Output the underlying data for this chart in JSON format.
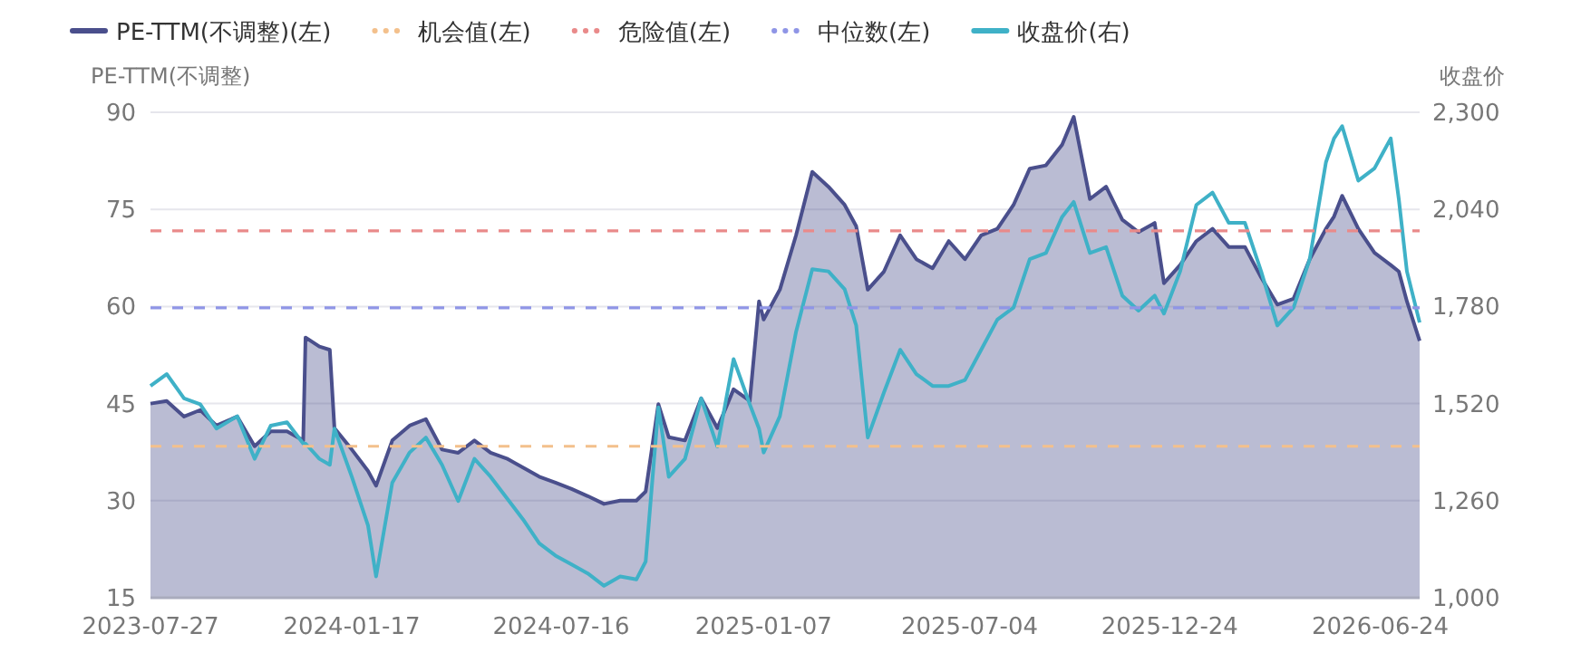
{
  "chart_data": {
    "type": "line",
    "ylabel": "PE-TTM(不调整)",
    "y2label": "收盘价",
    "x": [
      "2023-07-27",
      "2023-08-10",
      "2023-08-25",
      "2023-09-08",
      "2023-09-22",
      "2023-10-10",
      "2023-10-25",
      "2023-11-08",
      "2023-11-22",
      "2023-12-06",
      "2023-12-08",
      "2023-12-20",
      "2023-12-29",
      "2024-01-02",
      "2024-01-17",
      "2024-01-31",
      "2024-02-07",
      "2024-02-21",
      "2024-03-07",
      "2024-03-21",
      "2024-04-04",
      "2024-04-18",
      "2024-05-02",
      "2024-05-16",
      "2024-05-30",
      "2024-06-13",
      "2024-06-27",
      "2024-07-11",
      "2024-07-25",
      "2024-08-08",
      "2024-08-22",
      "2024-09-05",
      "2024-09-19",
      "2024-09-27",
      "2024-10-08",
      "2024-10-17",
      "2024-10-31",
      "2024-11-14",
      "2024-11-28",
      "2024-12-12",
      "2024-12-26",
      "2025-01-03",
      "2025-01-07",
      "2025-01-21",
      "2025-02-04",
      "2025-02-18",
      "2025-03-04",
      "2025-03-18",
      "2025-03-28",
      "2025-04-07",
      "2025-04-21",
      "2025-05-05",
      "2025-05-19",
      "2025-06-02",
      "2025-06-16",
      "2025-06-30",
      "2025-07-14",
      "2025-07-28",
      "2025-08-11",
      "2025-08-25",
      "2025-09-08",
      "2025-09-22",
      "2025-10-02",
      "2025-10-16",
      "2025-10-30",
      "2025-11-13",
      "2025-11-27",
      "2025-12-11",
      "2025-12-19",
      "2026-01-02",
      "2026-01-16",
      "2026-01-30",
      "2026-02-13",
      "2026-02-27",
      "2026-03-13",
      "2026-03-27",
      "2026-04-10",
      "2026-04-24",
      "2026-05-08",
      "2026-05-15",
      "2026-05-22",
      "2026-06-05",
      "2026-06-19",
      "2026-07-03",
      "2026-07-10",
      "2026-07-17",
      "2026-07-28"
    ],
    "series": [
      {
        "name": "PE-TTM(不调整)(左)",
        "type": "area",
        "color": "#4a4f8c",
        "values": [
          45,
          45.4,
          43,
          44,
          41.6,
          43,
          38.4,
          40.7,
          40.7,
          39.3,
          55.2,
          53.8,
          53.3,
          41.2,
          37.9,
          34.6,
          32.3,
          39.3,
          41.6,
          42.6,
          37.9,
          37.4,
          39.3,
          37.4,
          36.5,
          35.1,
          33.7,
          32.8,
          31.8,
          30.7,
          29.5,
          30,
          30,
          31.4,
          44.9,
          39.8,
          39.3,
          45.8,
          41.2,
          47.2,
          45.4,
          60.8,
          58,
          62.6,
          71,
          80.8,
          78.5,
          75.7,
          72.4,
          62.6,
          65.4,
          71,
          67.3,
          65.9,
          70.1,
          67.3,
          71,
          72,
          75.7,
          81.3,
          81.8,
          85,
          89.3,
          76.6,
          78.5,
          73.4,
          71.5,
          72.9,
          63.6,
          66.4,
          70.1,
          72,
          69.2,
          69.2,
          64.5,
          60.3,
          61.2,
          67.3,
          72,
          73.9,
          77.1,
          72,
          68.3,
          66.4,
          65.4,
          60.8,
          54.7
        ]
      },
      {
        "name": "收盘价(右)",
        "axis": "y2",
        "color": "#3fb1c7",
        "values": [
          1567,
          1599,
          1534,
          1518,
          1453,
          1486,
          1372,
          1461,
          1470,
          1413,
          1413,
          1372,
          1356,
          1453,
          1324,
          1194,
          1057,
          1308,
          1389,
          1429,
          1356,
          1259,
          1372,
          1324,
          1267,
          1210,
          1146,
          1113,
          1089,
          1065,
          1032,
          1057,
          1049,
          1097,
          1510,
          1324,
          1372,
          1534,
          1405,
          1639,
          1518,
          1453,
          1389,
          1486,
          1712,
          1880,
          1874,
          1826,
          1729,
          1429,
          1550,
          1664,
          1599,
          1567,
          1567,
          1583,
          1664,
          1745,
          1777,
          1907,
          1923,
          2020,
          2060,
          1923,
          1939,
          1809,
          1769,
          1809,
          1761,
          1874,
          2052,
          2085,
          2004,
          2004,
          1874,
          1729,
          1777,
          1907,
          2166,
          2230,
          2263,
          2117,
          2150,
          2230,
          2068,
          1874,
          1737
        ]
      }
    ],
    "ref_lines": [
      {
        "axis": "y",
        "value": 38.4,
        "label": "机会值(左)",
        "color": "#f3c08c",
        "line_style": "dashed"
      },
      {
        "axis": "y",
        "value": 71.7,
        "label": "危险值(左)",
        "color": "#e98a8a",
        "line_style": "dashed"
      },
      {
        "axis": "y",
        "value": 59.8,
        "label": "中位数(左)",
        "color": "#8f95e6",
        "line_style": "dashed"
      }
    ],
    "xlim": [
      "2023-07-27",
      "2026-07-28"
    ],
    "xticks": [
      "2023-07-27",
      "2024-01-17",
      "2024-07-16",
      "2025-01-07",
      "2025-07-04",
      "2025-12-24",
      "2026-06-24"
    ],
    "ylim": [
      15,
      90
    ],
    "yticks": [
      15,
      30,
      45,
      60,
      75,
      90
    ],
    "y2lim": [
      1000,
      2300
    ],
    "y2ticks": [
      {
        "value": 1000,
        "label": "1,000"
      },
      {
        "value": 1260,
        "label": "1,260"
      },
      {
        "value": 1520,
        "label": "1,520"
      },
      {
        "value": 1780,
        "label": "1,780"
      },
      {
        "value": 2040,
        "label": "2,040"
      },
      {
        "value": 2300,
        "label": "2,300"
      }
    ],
    "grid": "y",
    "legend": "top left",
    "marker": "none",
    "line_style": "solid"
  }
}
